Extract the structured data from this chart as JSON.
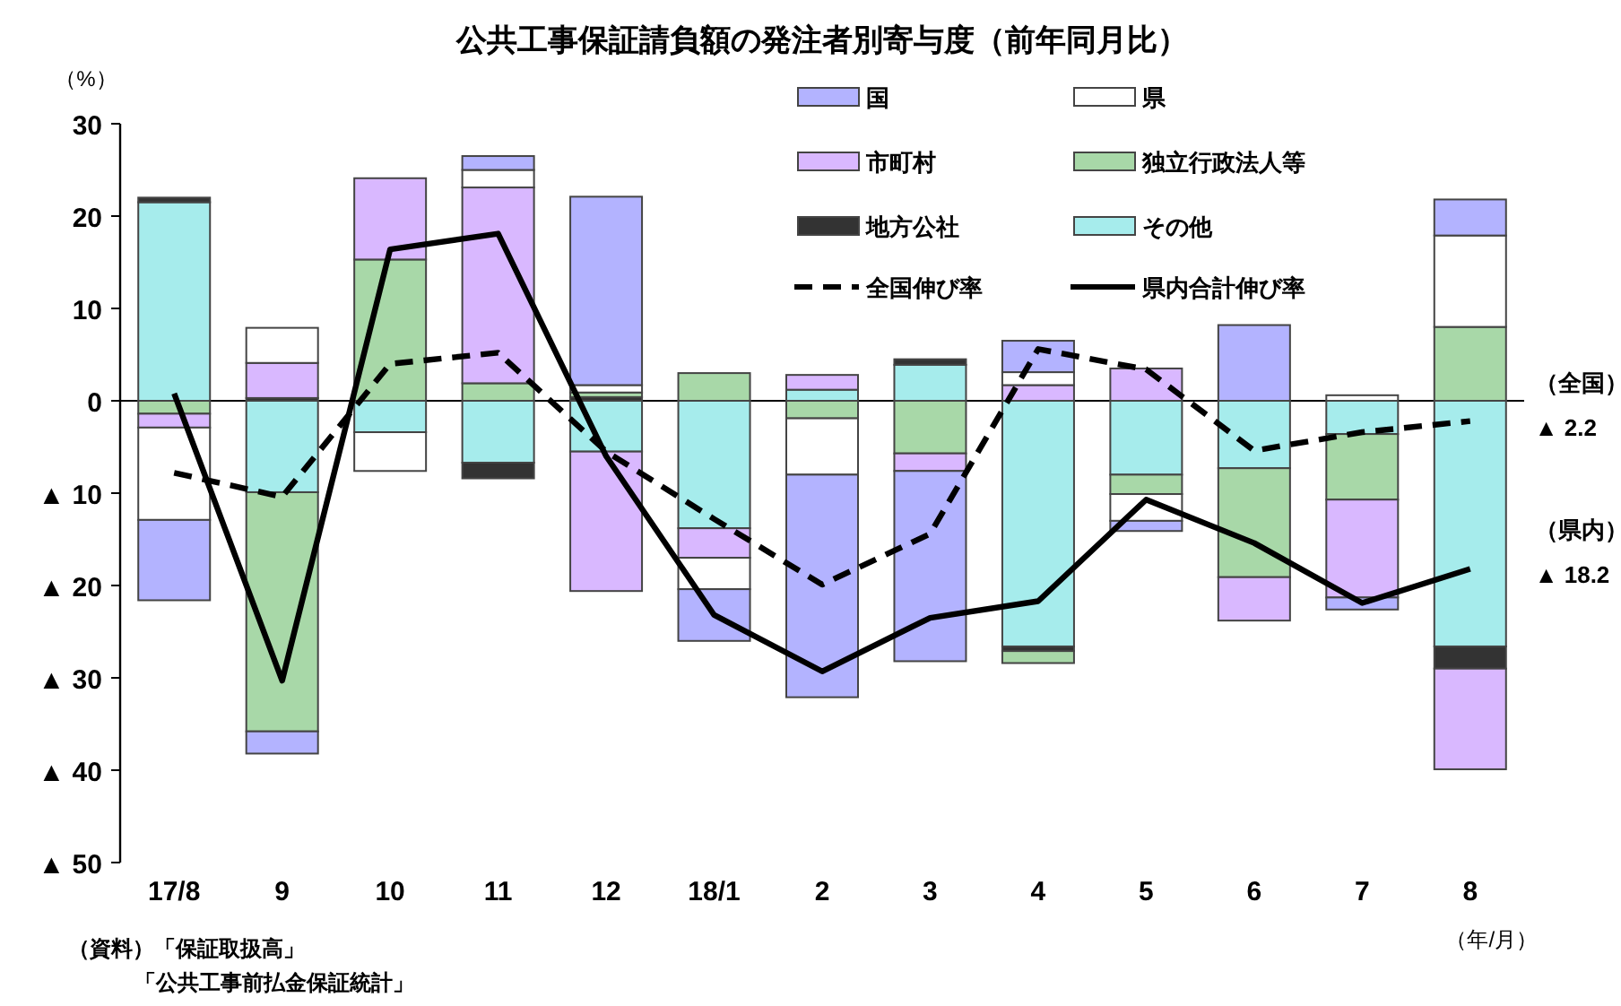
{
  "chart_data": {
    "type": "bar",
    "stacked": true,
    "title": "公共工事保証請負額の発注者別寄与度（前年同月比）",
    "ylabel": "（%）",
    "xlabel": "（年/月）",
    "categories": [
      "17/8",
      "9",
      "10",
      "11",
      "12",
      "18/1",
      "2",
      "3",
      "4",
      "5",
      "6",
      "7",
      "8"
    ],
    "ylim": [
      -50,
      30
    ],
    "yticks": [
      30,
      20,
      10,
      0,
      {
        "value": -10,
        "label": "▲ 10"
      },
      {
        "value": -20,
        "label": "▲ 20"
      },
      {
        "value": -30,
        "label": "▲ 30"
      },
      {
        "value": -40,
        "label": "▲ 40"
      },
      {
        "value": -50,
        "label": "▲ 50"
      }
    ],
    "legend": "top right",
    "series": [
      {
        "name": "その他",
        "color": "#a6ecec",
        "values": [
          21.5,
          -9.9,
          -3.4,
          -6.7,
          -5.5,
          -13.8,
          1.2,
          3.9,
          -26.6,
          -8.0,
          -7.3,
          -3.6,
          -26.6
        ]
      },
      {
        "name": "地方公社",
        "color": "#333333",
        "values": [
          0.5,
          0.3,
          null,
          -1.7,
          0.4,
          null,
          null,
          0.6,
          -0.5,
          null,
          null,
          null,
          -2.4
        ]
      },
      {
        "name": "独立行政法人等",
        "color": "#a8d8a8",
        "values": [
          -1.4,
          -25.9,
          15.3,
          1.9,
          0.5,
          3.0,
          -1.9,
          -5.7,
          -1.3,
          -2.1,
          -11.8,
          -7.1,
          8.0
        ]
      },
      {
        "name": "市町村",
        "color": "#d9b8ff",
        "values": [
          -1.5,
          3.8,
          8.8,
          21.2,
          -15.1,
          -3.2,
          1.6,
          -1.9,
          1.7,
          3.5,
          -4.7,
          -10.6,
          -10.9
        ]
      },
      {
        "name": "県",
        "color": "#ffffff",
        "values": [
          -10.0,
          3.8,
          -4.2,
          1.9,
          0.8,
          -3.4,
          -6.1,
          null,
          1.4,
          -2.9,
          null,
          0.6,
          9.9
        ]
      },
      {
        "name": "国",
        "color": "#b3b3ff",
        "values": [
          -8.7,
          -2.4,
          null,
          1.5,
          20.4,
          -5.6,
          -24.1,
          -20.6,
          3.4,
          -1.1,
          8.2,
          -1.3,
          3.9
        ]
      },
      {
        "name": "全国伸び率",
        "type": "line",
        "line_style": "dashed",
        "color": "#000000",
        "values": [
          -7.8,
          -10.4,
          4.0,
          5.2,
          -5.5,
          -12.8,
          -19.9,
          -14.4,
          5.6,
          3.4,
          -5.4,
          -3.4,
          -2.2
        ]
      },
      {
        "name": "県内合計伸び率",
        "type": "line",
        "line_style": "solid",
        "color": "#000000",
        "values": [
          0.8,
          -30.3,
          16.4,
          18.1,
          -6.0,
          -23.2,
          -29.3,
          -23.5,
          -21.7,
          -10.7,
          -15.4,
          -21.9,
          -18.2
        ]
      }
    ],
    "annotations": [
      {
        "text": "（全国）",
        "x": "8",
        "y": -2.2
      },
      {
        "text": "▲ 2.2",
        "x": "8",
        "y": -2.2
      },
      {
        "text": "（県内）",
        "x": "8",
        "y": -18.2
      },
      {
        "text": "▲ 18.2",
        "x": "8",
        "y": -18.2
      },
      "（資料）「保証取扱高」",
      "「公共工事前払金保証統計」"
    ]
  }
}
